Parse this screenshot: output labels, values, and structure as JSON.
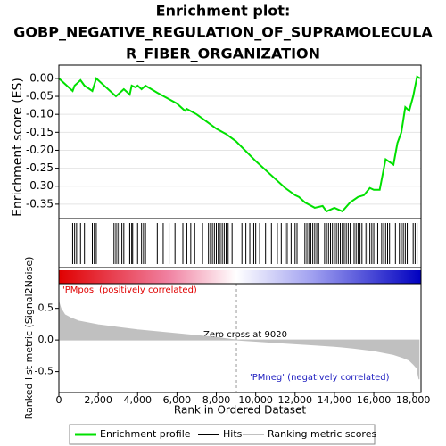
{
  "chart_data": [
    {
      "type": "line",
      "title": [
        "Enrichment plot:",
        "GOBP_NEGATIVE_REGULATION_OF_SUPRAMOLECULA",
        "R_FIBER_ORGANIZATION"
      ],
      "ylabel": "Enrichment score (ES)",
      "xlim": [
        0,
        18400
      ],
      "ylim": [
        -0.39,
        0.037
      ],
      "yticks": [
        {
          "value": 0,
          "label": "0.00"
        },
        {
          "value": -0.05,
          "label": "-0.05"
        },
        {
          "value": -0.1,
          "label": "-0.10"
        },
        {
          "value": -0.15,
          "label": "-0.15"
        },
        {
          "value": -0.2,
          "label": "-0.20"
        },
        {
          "value": -0.25,
          "label": "-0.25"
        },
        {
          "value": -0.3,
          "label": "-0.30"
        },
        {
          "value": -0.35,
          "label": "-0.35"
        }
      ],
      "grid": true,
      "series": [
        {
          "name": "Enrichment profile",
          "color": "#00e000",
          "x": [
            0,
            700,
            800,
            1000,
            1100,
            1300,
            1700,
            1900,
            2800,
            2900,
            3100,
            3300,
            3600,
            3700,
            3900,
            4000,
            4200,
            4400,
            5000,
            5500,
            6000,
            6400,
            6500,
            7000,
            7500,
            8000,
            8500,
            9000,
            10000,
            11000,
            11500,
            12000,
            12200,
            12500,
            13000,
            13400,
            13600,
            14000,
            14400,
            14800,
            15200,
            15500,
            15800,
            16000,
            16300,
            16600,
            17000,
            17200,
            17400,
            17600,
            17800,
            18000,
            18200,
            18350
          ],
          "values": [
            0,
            -0.035,
            -0.02,
            -0.01,
            -0.005,
            -0.02,
            -0.035,
            0,
            -0.045,
            -0.05,
            -0.04,
            -0.03,
            -0.045,
            -0.02,
            -0.025,
            -0.02,
            -0.03,
            -0.02,
            -0.04,
            -0.055,
            -0.07,
            -0.09,
            -0.085,
            -0.1,
            -0.12,
            -0.14,
            -0.155,
            -0.175,
            -0.23,
            -0.28,
            -0.305,
            -0.325,
            -0.33,
            -0.345,
            -0.36,
            -0.355,
            -0.37,
            -0.36,
            -0.37,
            -0.345,
            -0.33,
            -0.325,
            -0.305,
            -0.31,
            -0.31,
            -0.225,
            -0.24,
            -0.18,
            -0.15,
            -0.08,
            -0.09,
            -0.05,
            0.005,
            0
          ]
        }
      ]
    },
    {
      "type": "hits",
      "name": "Hits",
      "color": "#000000",
      "x": [
        700,
        800,
        900,
        1100,
        1300,
        1700,
        1800,
        1900,
        2800,
        2900,
        3000,
        3100,
        3200,
        3300,
        3600,
        3700,
        3750,
        4000,
        4200,
        4300,
        4400,
        5000,
        5300,
        5600,
        5900,
        6300,
        6500,
        6700,
        6900,
        7300,
        7600,
        7700,
        7800,
        7900,
        8000,
        8100,
        8200,
        8300,
        8400,
        8500,
        8600,
        8800,
        9300,
        9500,
        9700,
        9900,
        10000,
        10200,
        10500,
        10800,
        11100,
        11300,
        11500,
        11600,
        11800,
        12000,
        12100,
        12500,
        12600,
        12700,
        12800,
        12900,
        13000,
        13100,
        13200,
        13500,
        13600,
        13700,
        13800,
        13900,
        14000,
        14100,
        14200,
        14300,
        14400,
        14500,
        14600,
        14700,
        14800,
        15000,
        15100,
        15200,
        15300,
        15400,
        15600,
        15700,
        15800,
        15900,
        16000,
        16200,
        16400,
        16500,
        16600,
        16700,
        16800,
        17100,
        17300,
        17400,
        17500,
        17600,
        17700,
        18000,
        18100,
        18200
      ]
    },
    {
      "type": "area",
      "ylabel": "Ranked list metric (Signal2Noise)",
      "xlabel": "Rank in Ordered Dataset",
      "xlim": [
        0,
        18400
      ],
      "ylim": [
        -0.83,
        0.89
      ],
      "yticks": [
        0.5,
        {
          "value": 0,
          "label": "0.0"
        },
        -0.5
      ],
      "xticks": [
        0,
        {
          "value": 2000,
          "label": "2,000"
        },
        {
          "value": 4000,
          "label": "4,000"
        },
        {
          "value": 6000,
          "label": "6,000"
        },
        {
          "value": 8000,
          "label": "8,000"
        },
        {
          "value": 10000,
          "label": "10,000"
        },
        {
          "value": 12000,
          "label": "12,000"
        },
        {
          "value": 14000,
          "label": "14,000"
        },
        {
          "value": 16000,
          "label": "16,000"
        },
        {
          "value": 18000,
          "label": "18,000"
        }
      ],
      "zero_cross": 9020,
      "annotations": [
        "'PMpos' (positively correlated)",
        "Zero cross at 9020",
        "'PMneg' (negatively correlated)"
      ],
      "series": [
        {
          "name": "Ranking metric scores",
          "color": "#c0c0c0",
          "x": [
            0,
            100,
            300,
            600,
            1000,
            2000,
            3000,
            4000,
            5000,
            6000,
            7000,
            8000,
            9020,
            10000,
            11000,
            12000,
            13000,
            14000,
            15000,
            16000,
            16500,
            17000,
            17500,
            17800,
            18000,
            18200,
            18250,
            18300
          ],
          "values": [
            0.6,
            0.5,
            0.4,
            0.35,
            0.3,
            0.24,
            0.2,
            0.16,
            0.13,
            0.1,
            0.07,
            0.04,
            0,
            -0.02,
            -0.04,
            -0.06,
            -0.08,
            -0.1,
            -0.13,
            -0.17,
            -0.2,
            -0.23,
            -0.28,
            -0.32,
            -0.38,
            -0.45,
            -0.55,
            -0.62
          ]
        }
      ]
    }
  ]
}
